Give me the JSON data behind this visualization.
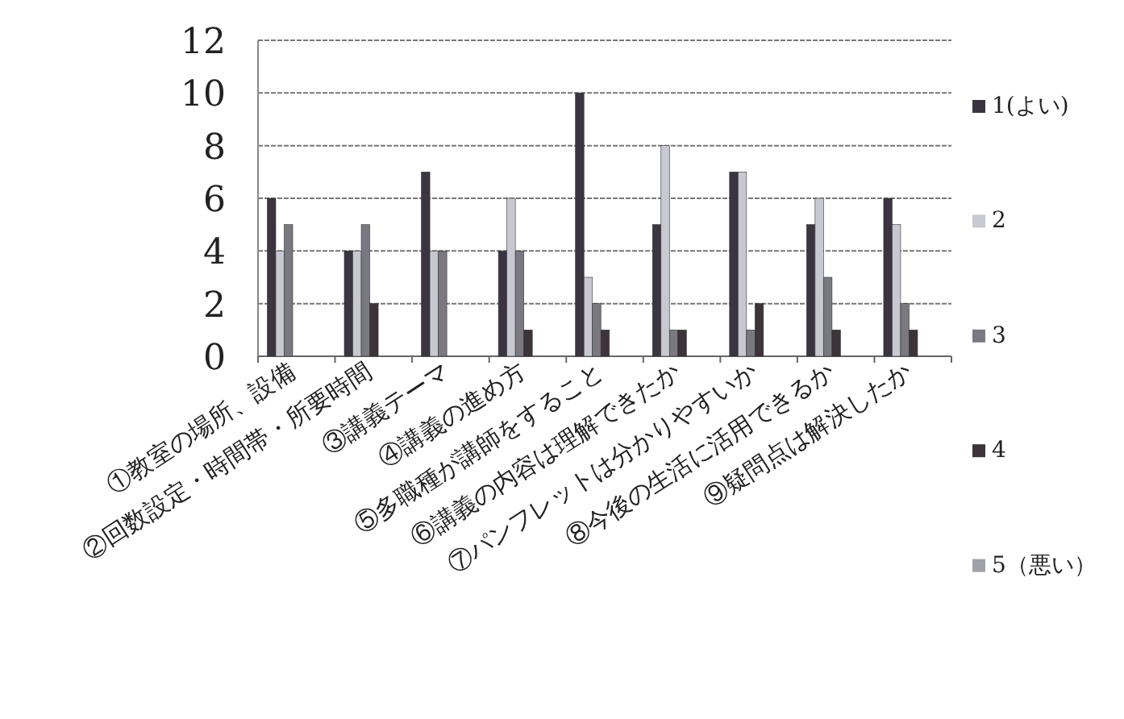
{
  "chart_data": {
    "type": "bar",
    "categories": [
      "①教室の場所、設備",
      "②回数設定・時間帯・所要時間",
      "③講義テーマ",
      "④講義の進め方",
      "⑤多職種が講師をすること",
      "⑥講義の内容は理解できたか",
      "⑦パンフレットは分かりやすいか",
      "⑧今後の生活に活用できるか",
      "⑨疑問点は解決したか"
    ],
    "series": [
      {
        "name": "1(よい)",
        "color": "#3a3540",
        "values": [
          6,
          4,
          7,
          4,
          10,
          5,
          7,
          5,
          6
        ]
      },
      {
        "name": "2",
        "color": "#c8c8d2",
        "values": [
          4,
          4,
          4,
          6,
          3,
          8,
          7,
          6,
          5
        ]
      },
      {
        "name": "3",
        "color": "#7a7880",
        "values": [
          5,
          5,
          4,
          4,
          2,
          1,
          1,
          3,
          2
        ]
      },
      {
        "name": "4",
        "color": "#3c3438",
        "values": [
          0,
          2,
          0,
          1,
          1,
          1,
          2,
          1,
          1
        ]
      },
      {
        "name": "5（悪い）",
        "color": "#a0a0a8",
        "values": [
          0,
          0,
          0,
          0,
          0,
          0,
          0,
          0,
          0
        ]
      }
    ],
    "ylim": [
      0,
      12
    ],
    "yticks": [
      0,
      2,
      4,
      6,
      8,
      10,
      12
    ],
    "grid": "y",
    "legend": "right"
  }
}
